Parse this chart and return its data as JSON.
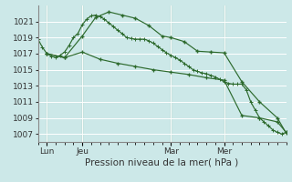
{
  "background_color": "#cce8e8",
  "grid_color": "#ffffff",
  "line_color": "#2d6a2d",
  "marker_color": "#2d6a2d",
  "title": "Pression niveau de la mer( hPa )",
  "ylim": [
    1006,
    1023
  ],
  "yticks": [
    1007,
    1009,
    1011,
    1013,
    1015,
    1017,
    1019,
    1021
  ],
  "xlim": [
    0,
    56
  ],
  "xtick_positions": [
    2,
    10,
    30,
    42
  ],
  "xtick_labels": [
    "Lun",
    "Jeu",
    "Mar",
    "Mer"
  ],
  "vline_positions": [
    2,
    10,
    30,
    42
  ],
  "series1_dense": {
    "x": [
      0,
      1,
      2,
      3,
      4,
      5,
      6,
      7,
      8,
      9,
      10,
      11,
      12,
      13,
      14,
      15,
      16,
      17,
      18,
      19,
      20,
      21,
      22,
      23,
      24,
      25,
      26,
      27,
      28,
      29,
      30,
      31,
      32,
      33,
      34,
      35,
      36,
      37,
      38,
      39,
      40,
      41,
      42,
      43,
      44,
      45,
      46,
      47,
      48,
      49,
      50,
      51,
      52,
      53,
      54,
      55,
      56
    ],
    "y": [
      1018.8,
      1017.8,
      1017.0,
      1016.7,
      1016.5,
      1016.8,
      1017.2,
      1018.0,
      1019.0,
      1019.5,
      1020.6,
      1021.3,
      1021.7,
      1021.8,
      1021.6,
      1021.3,
      1020.8,
      1020.4,
      1019.9,
      1019.5,
      1019.0,
      1018.9,
      1018.8,
      1018.8,
      1018.8,
      1018.6,
      1018.3,
      1017.9,
      1017.5,
      1017.1,
      1016.8,
      1016.5,
      1016.2,
      1015.8,
      1015.4,
      1015.0,
      1014.8,
      1014.6,
      1014.5,
      1014.3,
      1014.1,
      1013.8,
      1013.5,
      1013.3,
      1013.2,
      1013.2,
      1013.2,
      1012.5,
      1011.0,
      1010.0,
      1009.0,
      1008.5,
      1008.0,
      1007.5,
      1007.2,
      1007.0,
      1007.2
    ]
  },
  "series2": {
    "x": [
      2,
      6,
      10,
      13,
      16,
      19,
      22,
      25,
      28,
      30,
      33,
      36,
      39,
      42,
      46,
      50,
      54,
      56
    ],
    "y": [
      1017.0,
      1016.5,
      1019.2,
      1021.5,
      1022.2,
      1021.8,
      1021.4,
      1020.5,
      1019.2,
      1019.0,
      1018.5,
      1017.3,
      1017.2,
      1017.1,
      1013.5,
      1011.0,
      1009.0,
      1007.1
    ]
  },
  "series3": {
    "x": [
      2,
      6,
      10,
      14,
      18,
      22,
      26,
      30,
      34,
      38,
      42,
      46,
      50,
      54,
      56
    ],
    "y": [
      1017.0,
      1016.5,
      1017.2,
      1016.3,
      1015.8,
      1015.4,
      1015.0,
      1014.7,
      1014.4,
      1014.0,
      1013.7,
      1009.3,
      1009.0,
      1008.5,
      1007.2
    ]
  }
}
